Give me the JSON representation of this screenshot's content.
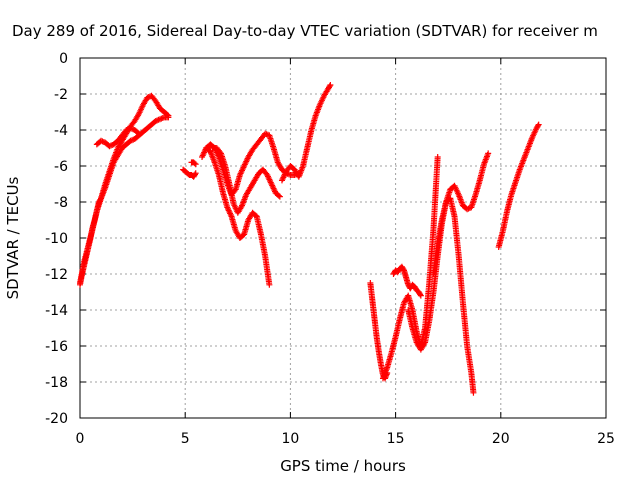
{
  "chart_data": {
    "type": "scatter",
    "title": "Day 289 of 2016, Sidereal Day-to-day VTEC variation (SDTVAR) for receiver m",
    "xlabel": "GPS time / hours",
    "ylabel": "SDTVAR / TECUs",
    "xlim": [
      0,
      25
    ],
    "ylim": [
      -20,
      0
    ],
    "xticks": [
      0,
      5,
      10,
      15,
      20,
      25
    ],
    "yticks": [
      0,
      -2,
      -4,
      -6,
      -8,
      -10,
      -12,
      -14,
      -16,
      -18,
      -20
    ],
    "grid": true,
    "marker": "+",
    "color": "#ff0000",
    "series": [
      {
        "x": [
          0.0,
          0.1,
          0.2,
          0.3,
          0.4,
          0.5,
          0.6,
          0.7,
          0.8,
          0.9,
          1.0,
          1.2,
          1.4,
          1.6,
          1.8,
          2.0,
          2.2,
          2.4,
          2.6,
          2.8,
          3.0,
          3.2,
          3.4,
          3.6,
          3.8,
          4.0,
          4.2
        ],
        "y": [
          -12.6,
          -12.0,
          -11.5,
          -11.0,
          -10.5,
          -10.0,
          -9.4,
          -9.0,
          -8.5,
          -8.0,
          -7.8,
          -7.2,
          -6.5,
          -5.8,
          -5.4,
          -5.0,
          -4.8,
          -4.6,
          -4.5,
          -4.3,
          -4.1,
          -3.9,
          -3.7,
          -3.5,
          -3.4,
          -3.3,
          -3.3
        ]
      },
      {
        "x": [
          0.0,
          0.2,
          0.4,
          0.6,
          0.8,
          1.0,
          1.2,
          1.4,
          1.6,
          1.8,
          2.0,
          2.2,
          2.4,
          2.6,
          2.8,
          3.0,
          3.2,
          3.4,
          3.6,
          3.8,
          4.0,
          4.2
        ],
        "y": [
          -12.5,
          -11.3,
          -10.4,
          -9.5,
          -8.5,
          -7.8,
          -7.0,
          -6.3,
          -5.6,
          -5.0,
          -4.6,
          -4.2,
          -3.8,
          -3.5,
          -3.1,
          -2.6,
          -2.2,
          -2.1,
          -2.4,
          -2.8,
          -3.0,
          -3.2
        ]
      },
      {
        "x": [
          0.8,
          1.0,
          1.2,
          1.4,
          1.6,
          1.8,
          2.0,
          2.2,
          2.4,
          2.6,
          2.8
        ],
        "y": [
          -4.8,
          -4.6,
          -4.7,
          -4.9,
          -4.8,
          -4.6,
          -4.3,
          -4.0,
          -3.9,
          -4.0,
          -4.2
        ]
      },
      {
        "x": [
          4.9,
          5.0,
          5.1,
          5.2,
          5.3,
          5.4,
          5.5
        ],
        "y": [
          -6.2,
          -6.3,
          -6.4,
          -6.5,
          -6.5,
          -6.6,
          -6.4
        ]
      },
      {
        "x": [
          5.3,
          5.4,
          5.5
        ],
        "y": [
          -5.8,
          -5.8,
          -5.9
        ]
      },
      {
        "x": [
          5.8,
          6.0,
          6.2,
          6.4,
          6.6,
          6.8,
          7.0,
          7.2,
          7.4,
          7.6,
          7.8,
          8.0,
          8.2,
          8.4,
          8.6,
          8.8,
          9.0,
          9.2,
          9.4,
          9.6,
          9.8,
          10.0,
          10.2,
          10.4
        ],
        "y": [
          -5.5,
          -5.0,
          -4.8,
          -5.0,
          -5.5,
          -6.2,
          -7.0,
          -7.6,
          -7.3,
          -6.5,
          -6.0,
          -5.5,
          -5.1,
          -4.8,
          -4.5,
          -4.2,
          -4.3,
          -5.0,
          -5.8,
          -6.2,
          -6.4,
          -6.5,
          -6.5,
          -6.4
        ]
      },
      {
        "x": [
          6.0,
          6.2,
          6.4,
          6.6,
          6.8,
          7.0,
          7.2,
          7.4,
          7.6,
          7.8,
          8.0,
          8.2,
          8.4,
          8.6,
          8.8,
          9.0
        ],
        "y": [
          -5.0,
          -5.2,
          -5.8,
          -6.5,
          -7.5,
          -8.3,
          -8.8,
          -9.6,
          -10.0,
          -9.8,
          -9.0,
          -8.6,
          -8.8,
          -9.8,
          -11.0,
          -12.6
        ]
      },
      {
        "x": [
          6.3,
          6.5,
          6.7,
          6.9,
          7.1,
          7.3,
          7.5,
          7.7,
          7.9,
          8.1,
          8.3,
          8.5,
          8.7,
          8.9,
          9.1,
          9.3,
          9.5
        ],
        "y": [
          -5.0,
          -5.0,
          -5.3,
          -6.0,
          -7.0,
          -8.1,
          -8.6,
          -8.2,
          -7.6,
          -7.2,
          -6.8,
          -6.4,
          -6.2,
          -6.5,
          -7.0,
          -7.5,
          -7.7
        ]
      },
      {
        "x": [
          9.6,
          9.8,
          10.0,
          10.2,
          10.4,
          10.6,
          10.8,
          11.0,
          11.2,
          11.4,
          11.6,
          11.8,
          11.9
        ],
        "y": [
          -6.8,
          -6.3,
          -6.0,
          -6.2,
          -6.6,
          -6.0,
          -5.0,
          -4.0,
          -3.2,
          -2.6,
          -2.1,
          -1.7,
          -1.5
        ]
      },
      {
        "x": [
          13.8,
          13.9,
          14.0,
          14.1,
          14.2,
          14.3,
          14.4,
          14.5,
          14.6
        ],
        "y": [
          -12.5,
          -13.5,
          -14.5,
          -15.5,
          -16.3,
          -17.0,
          -17.6,
          -17.8,
          -17.5
        ]
      },
      {
        "x": [
          14.4,
          14.6,
          14.8,
          15.0,
          15.2,
          15.4,
          15.6,
          15.8,
          16.0,
          16.2,
          16.4,
          16.6,
          16.8,
          17.0
        ],
        "y": [
          -17.8,
          -17.2,
          -16.4,
          -15.5,
          -14.5,
          -13.6,
          -13.2,
          -14.0,
          -15.2,
          -16.0,
          -15.0,
          -12.5,
          -9.5,
          -5.5
        ]
      },
      {
        "x": [
          14.9,
          15.0,
          15.1,
          15.2,
          15.3,
          15.4,
          15.5,
          15.6,
          15.7,
          15.8,
          15.9,
          16.0,
          16.1,
          16.2
        ],
        "y": [
          -12.0,
          -11.8,
          -11.9,
          -11.7,
          -11.6,
          -11.8,
          -12.2,
          -12.6,
          -12.8,
          -12.6,
          -12.7,
          -12.9,
          -13.0,
          -13.2
        ]
      },
      {
        "x": [
          15.6,
          15.8,
          16.0,
          16.2,
          16.4,
          16.6,
          16.8,
          17.0,
          17.2,
          17.4,
          17.6,
          17.8,
          18.0,
          18.2,
          18.4,
          18.6,
          18.8,
          19.0,
          19.2,
          19.4
        ],
        "y": [
          -14.0,
          -15.0,
          -15.8,
          -16.2,
          -15.8,
          -14.6,
          -13.0,
          -11.0,
          -9.2,
          -8.0,
          -7.3,
          -7.1,
          -7.6,
          -8.2,
          -8.4,
          -8.3,
          -7.6,
          -6.8,
          -5.9,
          -5.3
        ]
      },
      {
        "x": [
          16.8,
          17.0,
          17.2,
          17.4,
          17.6,
          17.8,
          18.0,
          18.2,
          18.4,
          18.6,
          18.7
        ],
        "y": [
          -12.0,
          -10.3,
          -9.0,
          -8.0,
          -7.8,
          -8.8,
          -11.0,
          -13.6,
          -16.0,
          -17.5,
          -18.6
        ]
      },
      {
        "x": [
          19.9,
          20.1,
          20.3,
          20.5,
          20.7,
          20.9,
          21.1,
          21.3,
          21.5,
          21.7,
          21.8
        ],
        "y": [
          -10.5,
          -9.6,
          -8.5,
          -7.6,
          -6.9,
          -6.2,
          -5.6,
          -5.0,
          -4.4,
          -3.9,
          -3.7
        ]
      }
    ]
  }
}
